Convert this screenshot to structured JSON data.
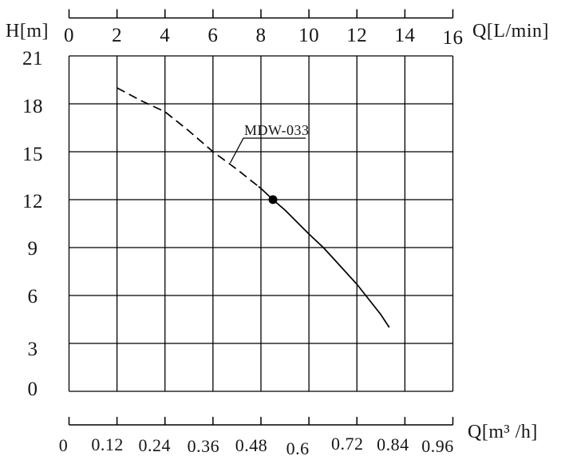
{
  "page": {
    "background": "#ffffff",
    "ink": "#000000"
  },
  "chart_data": {
    "type": "line",
    "title": "",
    "axes": {
      "top": {
        "label": "Q[L/min]",
        "min": 0,
        "max": 16,
        "ticks": [
          "0",
          "2",
          "4",
          "6",
          "8",
          "10",
          "12",
          "14",
          "16"
        ]
      },
      "bottom": {
        "label": "Q[m³ /h]",
        "min": 0,
        "max": 0.96,
        "ticks": [
          "0",
          "0.12",
          "0.24",
          "0.36",
          "0.48",
          "0.6",
          "0.72",
          "0.84",
          "0.96"
        ]
      },
      "left": {
        "label": "H[m]",
        "min": 0,
        "max": 21,
        "ticks": [
          "21",
          "18",
          "15",
          "12",
          "9",
          "6",
          "3",
          "0"
        ]
      }
    },
    "grid": {
      "show": true,
      "x_step_lmin": 2,
      "y_step_m": 3,
      "columns": 8,
      "rows": 7
    },
    "series": [
      {
        "name": "MDW-033",
        "line_style": "dashed then solid",
        "dashed_until_q_lmin": 7.9,
        "points_q_lmin_h_m": [
          [
            2,
            19.0
          ],
          [
            3,
            18.2
          ],
          [
            4,
            17.5
          ],
          [
            5,
            16.3
          ],
          [
            6,
            15.0
          ],
          [
            7,
            13.9
          ],
          [
            8,
            12.7
          ],
          [
            8.5,
            12.0
          ],
          [
            9,
            11.35
          ],
          [
            10,
            9.85
          ],
          [
            10.6,
            9.0
          ],
          [
            11,
            8.35
          ],
          [
            12,
            6.7
          ],
          [
            13,
            4.8
          ],
          [
            13.35,
            4.0
          ]
        ]
      }
    ],
    "marker": {
      "q_lmin": 8.5,
      "h_m": 12.0
    },
    "annotation": {
      "text": "MDW-033",
      "attach_q_lmin": 6.72,
      "attach_h_m": 14.3
    }
  },
  "colors": {
    "line": "#000000",
    "grid": "#000000",
    "curve": "#000000",
    "marker": "#000000",
    "text": "#161616"
  }
}
